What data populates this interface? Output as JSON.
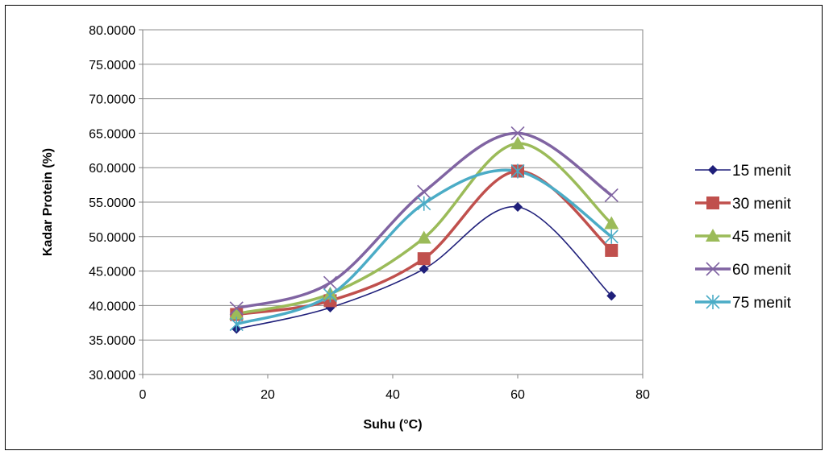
{
  "chart_data": {
    "type": "line",
    "title": "",
    "xlabel": "Suhu (°C)",
    "ylabel": "Kadar Protein (%)",
    "xlim": [
      0,
      80
    ],
    "ylim": [
      30,
      80
    ],
    "x_ticks": [
      "0",
      "20",
      "40",
      "60",
      "80"
    ],
    "x_tick_values": [
      0,
      20,
      40,
      60,
      80
    ],
    "y_ticks": [
      "30.0000",
      "35.0000",
      "40.0000",
      "45.0000",
      "50.0000",
      "55.0000",
      "60.0000",
      "65.0000",
      "70.0000",
      "75.0000",
      "80.0000"
    ],
    "y_tick_values": [
      30,
      35,
      40,
      45,
      50,
      55,
      60,
      65,
      70,
      75,
      80
    ],
    "grid": "horizontal",
    "legend_position": "right",
    "x": [
      15,
      30,
      45,
      60,
      75
    ],
    "series": [
      {
        "name": "15 menit",
        "values": [
          36.6,
          39.7,
          45.3,
          54.3,
          41.4
        ],
        "color": "#1f1f7a",
        "marker": "diamond"
      },
      {
        "name": "30 menit",
        "values": [
          38.7,
          40.7,
          46.8,
          59.5,
          48.0
        ],
        "color": "#c0504d",
        "marker": "square"
      },
      {
        "name": "45 menit",
        "values": [
          38.8,
          41.7,
          49.8,
          63.5,
          51.9
        ],
        "color": "#9bbb59",
        "marker": "triangle"
      },
      {
        "name": "60 menit",
        "values": [
          39.6,
          43.3,
          56.5,
          65.0,
          56.0
        ],
        "color": "#8064a2",
        "marker": "x"
      },
      {
        "name": "75 menit",
        "values": [
          37.3,
          41.5,
          54.8,
          59.5,
          50.0
        ],
        "color": "#4bacc6",
        "marker": "star"
      }
    ]
  }
}
